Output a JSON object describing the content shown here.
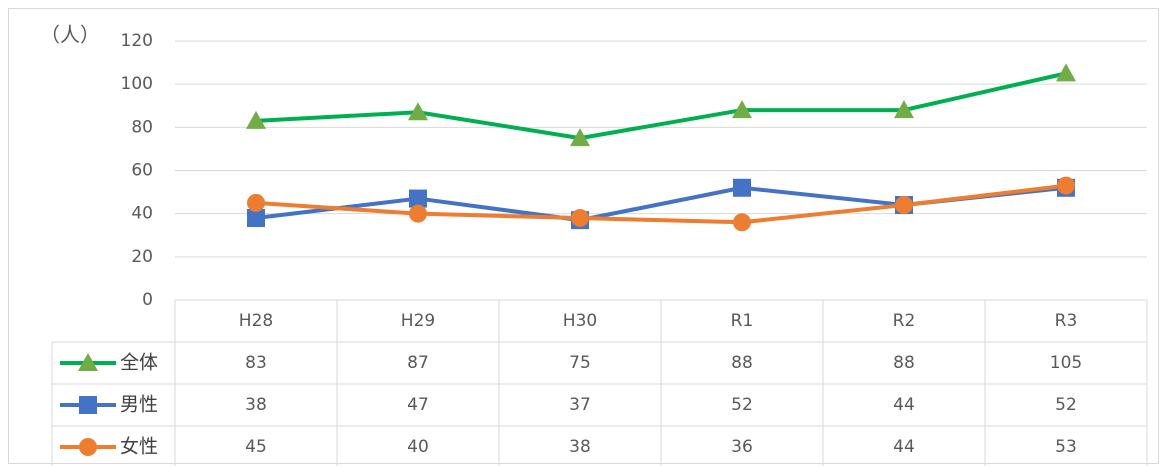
{
  "chart_data": {
    "type": "line",
    "ylabel": "（人）",
    "categories": [
      "H28",
      "H29",
      "H30",
      "R1",
      "R2",
      "R3"
    ],
    "series": [
      {
        "name": "全体",
        "color": "#00b050",
        "marker": "triangle",
        "values": [
          83,
          87,
          75,
          88,
          88,
          105
        ]
      },
      {
        "name": "男性",
        "color": "#4472c4",
        "marker": "square",
        "values": [
          38,
          47,
          37,
          52,
          44,
          52
        ]
      },
      {
        "name": "女性",
        "color": "#ed7d31",
        "marker": "circle",
        "values": [
          45,
          40,
          38,
          36,
          44,
          53
        ]
      }
    ],
    "ylim": [
      0,
      120
    ],
    "yticks": [
      0,
      20,
      40,
      60,
      80,
      100,
      120
    ],
    "grid": true,
    "data_table": true
  }
}
